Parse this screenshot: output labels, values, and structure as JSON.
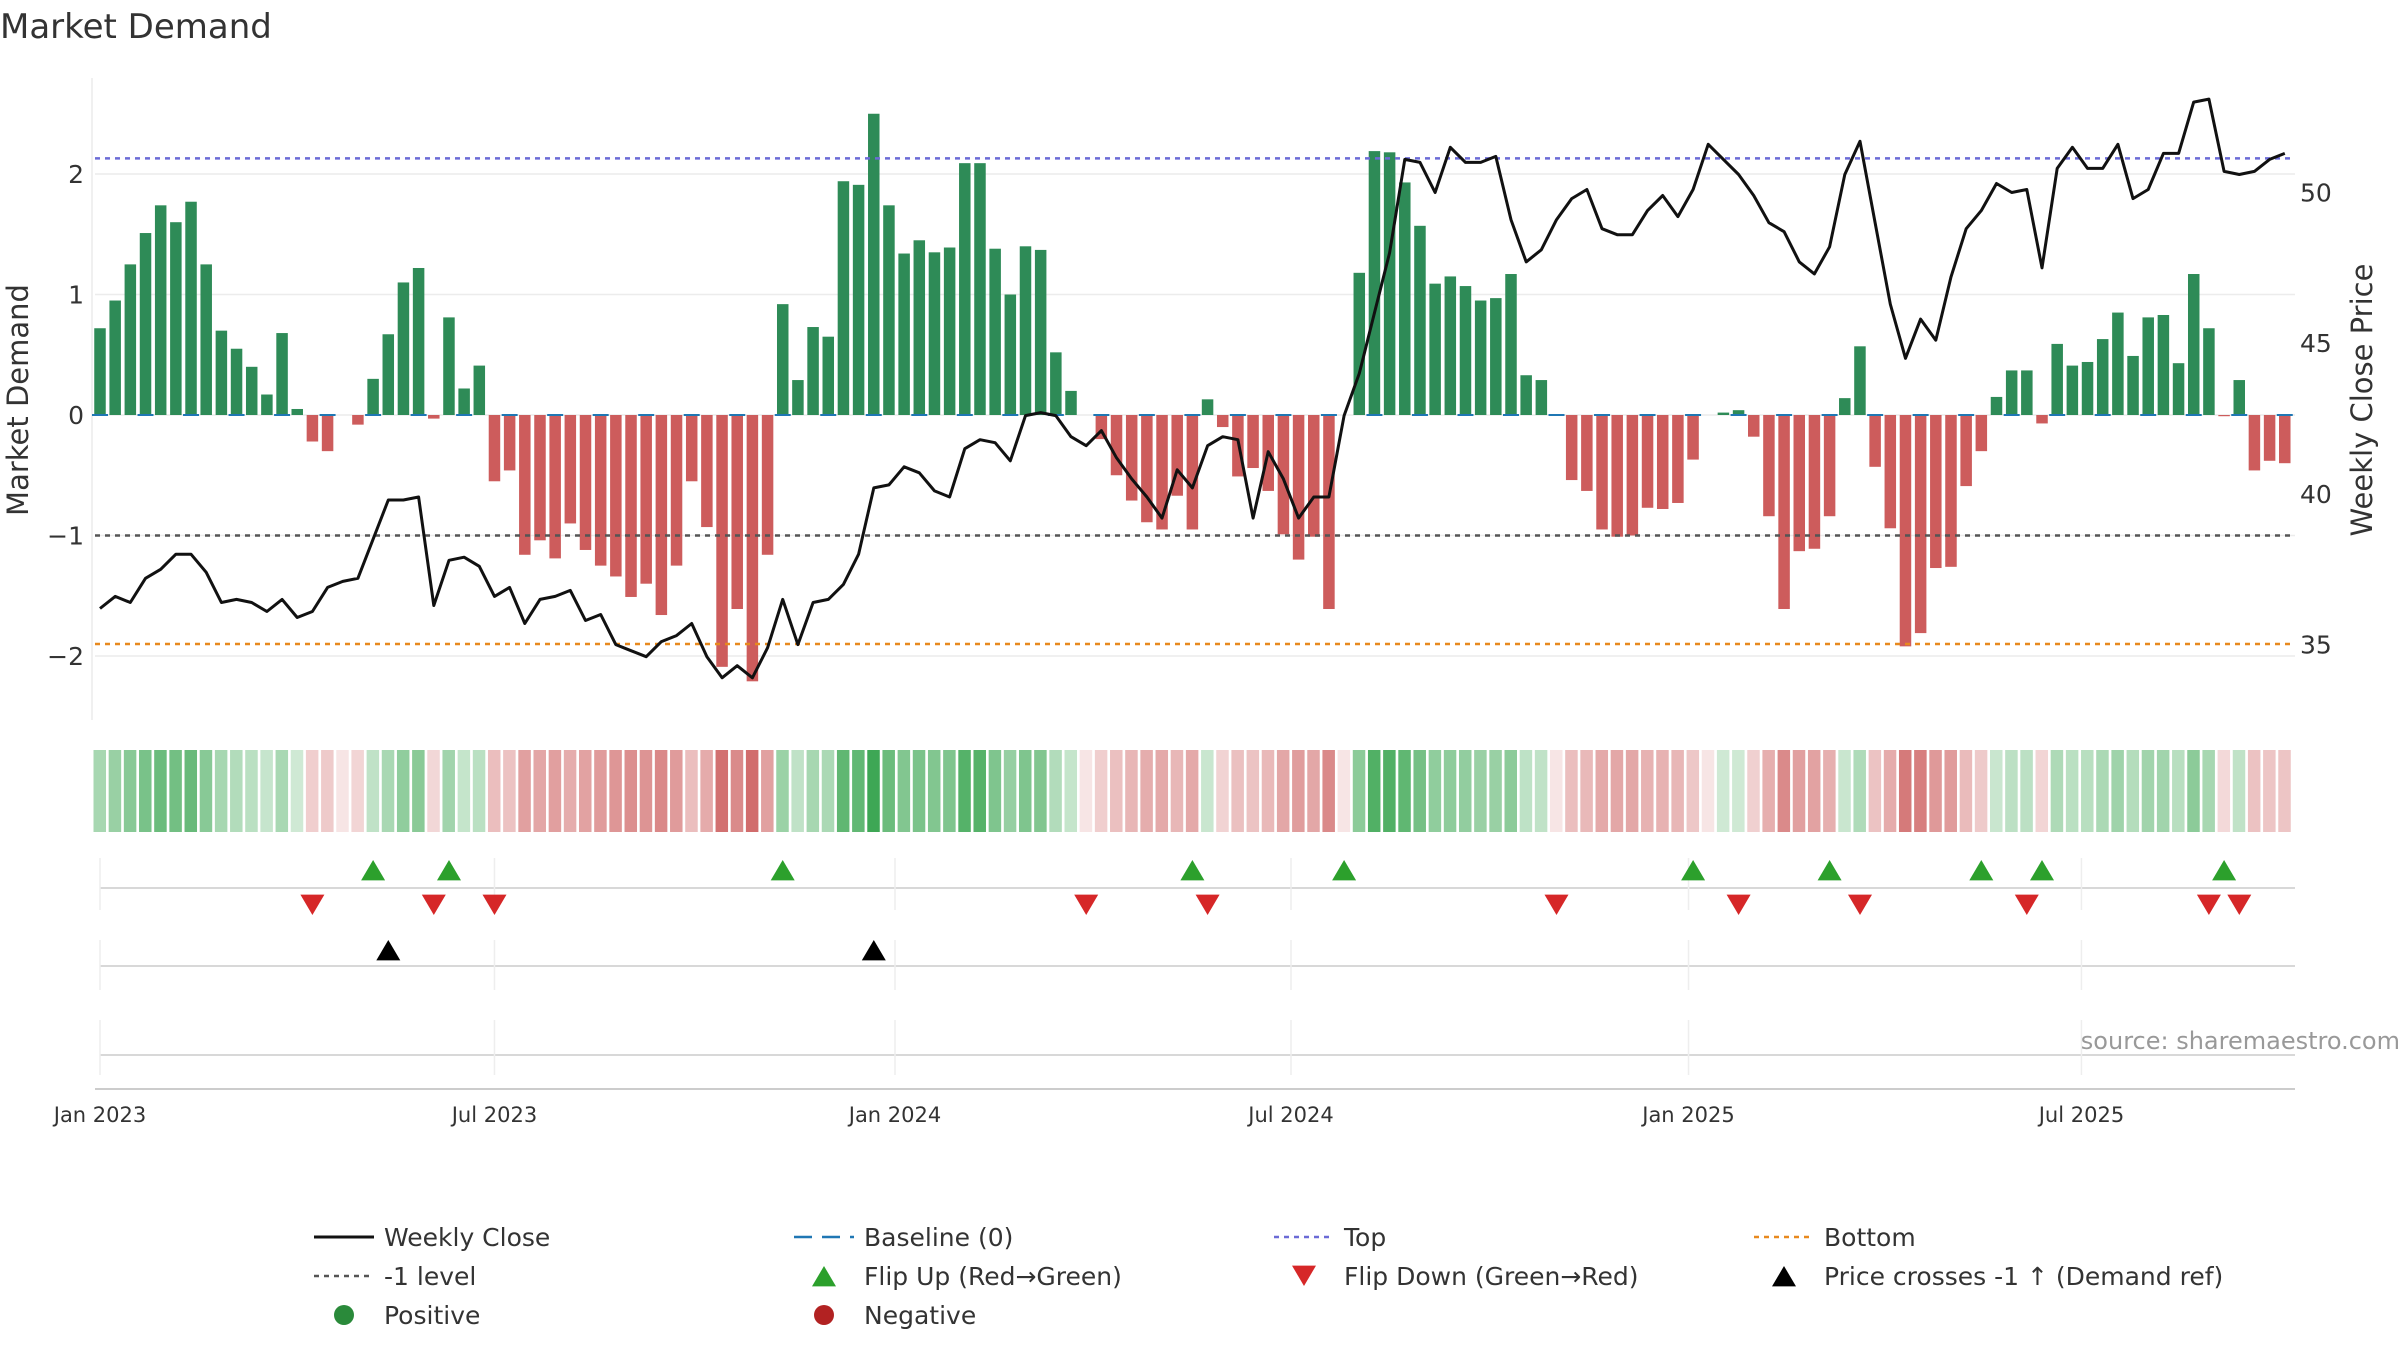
{
  "chart_data": {
    "type": "bar",
    "title": "Market Demand",
    "ylabel": "Market Demand",
    "y2label": "Weekly Close Price",
    "ylim": [
      -2.5,
      2.8
    ],
    "y2lim": [
      32.5,
      53.8
    ],
    "yticks": [
      {
        "value": 2,
        "label": "2"
      },
      {
        "value": 1,
        "label": "1"
      },
      {
        "value": 0,
        "label": "0"
      },
      {
        "value": -1,
        "label": "−1"
      },
      {
        "value": -2,
        "label": "−2"
      }
    ],
    "y2ticks": [
      {
        "value": 50,
        "label": "50"
      },
      {
        "value": 45,
        "label": "45"
      },
      {
        "value": 40,
        "label": "40"
      },
      {
        "value": 35,
        "label": "35"
      }
    ],
    "xticks": [
      {
        "week": 1,
        "label": "Jan 2023"
      },
      {
        "week": 27,
        "label": "Jul 2023"
      },
      {
        "week": 53.4,
        "label": "Jan 2024"
      },
      {
        "week": 79.5,
        "label": "Jul 2024"
      },
      {
        "week": 105.7,
        "label": "Jan 2025"
      },
      {
        "week": 131.6,
        "label": "Jul 2025"
      }
    ],
    "levels": {
      "top": 2.13,
      "bottom": -1.9,
      "minus_one": -1,
      "baseline": 0
    },
    "demand": [
      0.72,
      0.95,
      1.25,
      1.51,
      1.74,
      1.6,
      1.77,
      1.25,
      0.7,
      0.55,
      0.4,
      0.17,
      0.68,
      0.05,
      -0.22,
      -0.3,
      0,
      -0.08,
      0.3,
      0.67,
      1.1,
      1.22,
      -0.03,
      0.81,
      0.22,
      0.41,
      -0.55,
      -0.46,
      -1.16,
      -1.04,
      -1.19,
      -0.9,
      -1.12,
      -1.25,
      -1.34,
      -1.51,
      -1.4,
      -1.66,
      -1.25,
      -0.55,
      -0.93,
      -2.09,
      -1.61,
      -2.21,
      -1.16,
      0.92,
      0.29,
      0.73,
      0.65,
      1.94,
      1.91,
      2.5,
      1.74,
      1.34,
      1.45,
      1.35,
      1.39,
      2.09,
      2.09,
      1.38,
      1.0,
      1.4,
      1.37,
      0.52,
      0.2,
      0,
      -0.2,
      -0.5,
      -0.71,
      -0.89,
      -0.95,
      -0.67,
      -0.95,
      0.13,
      -0.1,
      -0.51,
      -0.44,
      -0.63,
      -0.99,
      -1.2,
      -1.01,
      -1.61,
      0,
      1.18,
      2.19,
      2.18,
      1.93,
      1.57,
      1.09,
      1.15,
      1.07,
      0.95,
      0.97,
      1.17,
      0.33,
      0.29,
      0,
      -0.54,
      -0.63,
      -0.95,
      -1.01,
      -1.0,
      -0.77,
      -0.78,
      -0.73,
      -0.37,
      0,
      0.02,
      0.04,
      -0.18,
      -0.84,
      -1.61,
      -1.13,
      -1.11,
      -0.84,
      0.14,
      0.57,
      -0.43,
      -0.94,
      -1.92,
      -1.81,
      -1.27,
      -1.26,
      -0.59,
      -0.3,
      0.15,
      0.37,
      0.37,
      -0.07,
      0.59,
      0.41,
      0.44,
      0.63,
      0.85,
      0.49,
      0.81,
      0.83,
      0.43,
      1.17,
      0.72,
      -0.01,
      0.29,
      -0.46,
      -0.38,
      -0.4
    ],
    "price": [
      36.2,
      36.6,
      36.4,
      37.2,
      37.5,
      38.0,
      38.0,
      37.4,
      36.4,
      36.5,
      36.4,
      36.1,
      36.5,
      35.9,
      36.1,
      36.9,
      37.1,
      37.2,
      38.5,
      39.8,
      39.8,
      39.9,
      36.3,
      37.8,
      37.9,
      37.6,
      36.6,
      36.9,
      35.7,
      36.5,
      36.6,
      36.8,
      35.8,
      36.0,
      35.0,
      34.8,
      34.6,
      35.1,
      35.3,
      35.7,
      34.6,
      33.9,
      34.3,
      33.9,
      34.9,
      36.5,
      35.0,
      36.4,
      36.5,
      37.0,
      38.0,
      40.2,
      40.3,
      40.9,
      40.7,
      40.1,
      39.9,
      41.5,
      41.8,
      41.7,
      41.1,
      42.6,
      42.7,
      42.6,
      41.9,
      41.6,
      42.1,
      41.2,
      40.5,
      39.9,
      39.2,
      40.8,
      40.2,
      41.6,
      41.9,
      41.8,
      39.2,
      41.4,
      40.5,
      39.2,
      39.9,
      39.9,
      42.6,
      44.0,
      46.0,
      48.0,
      51.1,
      51.0,
      50.0,
      51.5,
      51.0,
      51.0,
      51.2,
      49.1,
      47.7,
      48.1,
      49.1,
      49.8,
      50.1,
      48.8,
      48.6,
      48.6,
      49.4,
      49.9,
      49.2,
      50.1,
      51.6,
      51.1,
      50.6,
      49.9,
      49.0,
      48.7,
      47.7,
      47.3,
      48.2,
      50.6,
      51.7,
      49.0,
      46.3,
      44.5,
      45.8,
      45.1,
      47.2,
      48.8,
      49.4,
      50.3,
      50.0,
      50.1,
      47.5,
      50.8,
      51.5,
      50.8,
      50.8,
      51.6,
      49.8,
      50.1,
      51.3,
      51.3,
      53.0,
      53.1,
      50.7,
      50.6,
      50.7,
      51.1,
      51.3
    ],
    "flip_up_weeks": [
      19,
      24,
      46,
      73,
      83,
      106,
      115,
      125,
      129,
      141
    ],
    "flip_down_weeks": [
      15,
      23,
      27,
      66,
      74,
      97,
      109,
      117,
      128,
      140,
      142
    ],
    "price_cross_weeks": [
      20,
      52
    ],
    "source": "source: sharemaestro.com",
    "legend": {
      "placement": "bottom",
      "entries": [
        {
          "id": "weekly-close",
          "label": "Weekly Close",
          "color": "#111111"
        },
        {
          "id": "baseline",
          "label": "Baseline (0)",
          "color": "#1f77b4"
        },
        {
          "id": "top",
          "label": "Top",
          "color": "#6b6bd6"
        },
        {
          "id": "bottom",
          "label": "Bottom",
          "color": "#e8891e"
        },
        {
          "id": "minus-one",
          "label": "-1 level",
          "color": "#555555"
        },
        {
          "id": "flip-up",
          "label": "Flip Up (Red→Green)",
          "color": "#2ca02c"
        },
        {
          "id": "flip-down",
          "label": "Flip Down (Green→Red)",
          "color": "#d62728"
        },
        {
          "id": "price-cross",
          "label": "Price crosses -1 ↑ (Demand ref)",
          "color": "#000000"
        },
        {
          "id": "positive",
          "label": "Positive",
          "color": "#2a8a3a"
        },
        {
          "id": "negative",
          "label": "Negative",
          "color": "#b22222"
        }
      ]
    },
    "colors": {
      "pos": "#2e8b57",
      "neg": "#cd5c5c",
      "price": "#111111"
    }
  }
}
